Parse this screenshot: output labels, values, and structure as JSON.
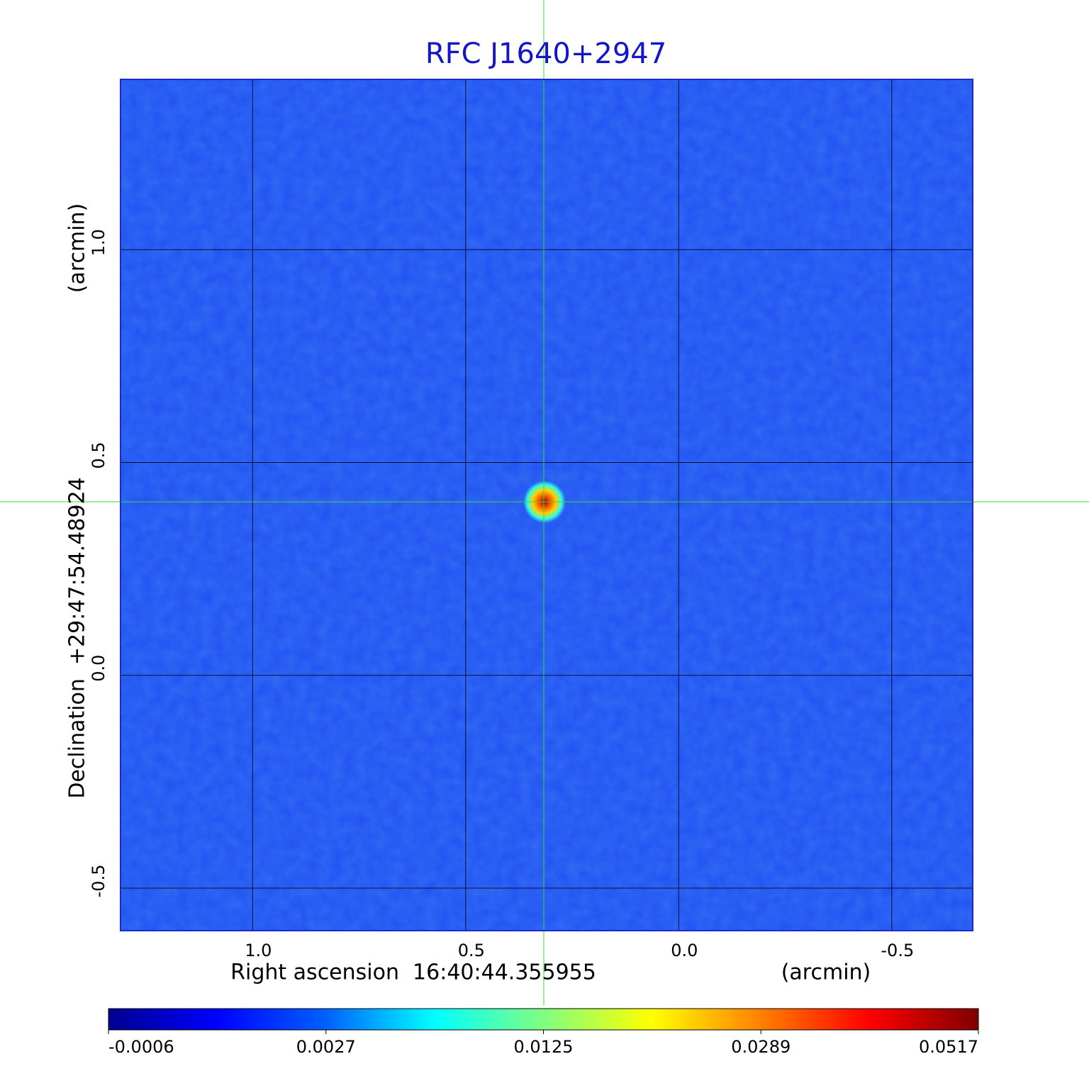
{
  "chart_data": {
    "type": "image",
    "title": "RFC J1640+2947",
    "x_label": "Right ascension  16:40:44.355955",
    "x_unit": "(arcmin)",
    "y_label": "Declination  +29:47:54.48924",
    "y_unit": "(arcmin)",
    "xlim": [
      1.31,
      -0.69
    ],
    "ylim": [
      -0.6,
      1.4
    ],
    "xticks": [
      {
        "value": 1,
        "label": "1.0"
      },
      {
        "value": 0.5,
        "label": "0.5"
      },
      {
        "value": 0,
        "label": "0.0"
      },
      {
        "value": -0.5,
        "label": "-0.5"
      }
    ],
    "yticks": [
      {
        "value": -0.5,
        "label": "-0.5"
      },
      {
        "value": 0,
        "label": "0.0"
      },
      {
        "value": 0.5,
        "label": "0.5"
      },
      {
        "value": 1,
        "label": "1.0"
      }
    ],
    "grid": true,
    "image_color": "#1f50f2",
    "colorbar": {
      "ticks": [
        -0.0006,
        0.0027,
        0.0125,
        0.0289,
        0.0517
      ],
      "colors": [
        "#00008f",
        "#0000ff",
        "#0060ff",
        "#00ffff",
        "#80ff80",
        "#ffff00",
        "#ff8000",
        "#ff0000",
        "#800000"
      ]
    }
  }
}
